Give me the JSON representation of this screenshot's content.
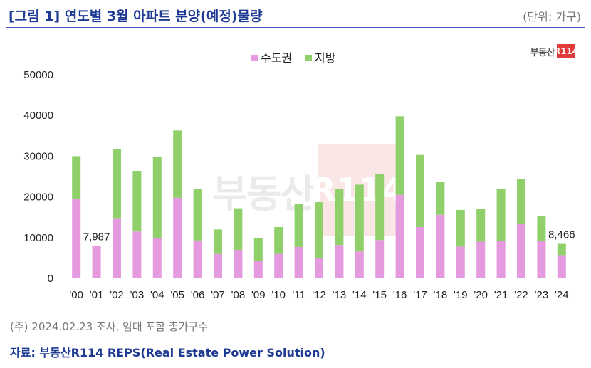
{
  "header": {
    "title": "[그림 1] 연도별 3월 아파트 분양(예정)물량",
    "unit": "(단위: 가구)"
  },
  "logo": {
    "text": "부동산",
    "mark": "R114"
  },
  "watermark": {
    "text": "부동산",
    "mark": "R114"
  },
  "footer": {
    "note": "(주) 2024.02.23 조사, 임대 포함 총가구수",
    "source": "자료: 부동산R114 REPS(Real Estate Power Solution)"
  },
  "colors": {
    "capital": "#e59ae0",
    "regional": "#8fd06a",
    "title": "#1f3a93"
  },
  "chart_data": {
    "type": "bar",
    "stacked": true,
    "categories": [
      "'00",
      "'01",
      "'02",
      "'03",
      "'04",
      "'05",
      "'06",
      "'07",
      "'08",
      "'09",
      "'10",
      "'11",
      "'12",
      "'13",
      "'14",
      "'15",
      "'16",
      "'17",
      "'18",
      "'19",
      "'20",
      "'21",
      "'22",
      "'23",
      "'24"
    ],
    "series": [
      {
        "name": "수도권",
        "color": "#e59ae0",
        "values": [
          19500,
          7987,
          14800,
          11500,
          9800,
          19800,
          9300,
          6000,
          7000,
          4300,
          6000,
          7700,
          5000,
          8200,
          6600,
          9400,
          20500,
          12600,
          15600,
          7800,
          9000,
          9200,
          13400,
          9200,
          5700
        ]
      },
      {
        "name": "지방",
        "color": "#8fd06a",
        "values": [
          10500,
          0,
          16900,
          14900,
          20100,
          16500,
          12700,
          6000,
          10200,
          5500,
          6600,
          10600,
          13700,
          13800,
          16400,
          16300,
          19300,
          17700,
          8100,
          9000,
          8000,
          12800,
          11000,
          6000,
          2766
        ]
      }
    ],
    "data_labels": [
      {
        "category": "'01",
        "text": "7,987"
      },
      {
        "category": "'24",
        "text": "8,466"
      }
    ],
    "yticks": [
      "0",
      "10000",
      "20000",
      "30000",
      "40000",
      "50000"
    ],
    "ylim": [
      0,
      50000
    ],
    "legend_position": "top-center",
    "grid": false
  }
}
